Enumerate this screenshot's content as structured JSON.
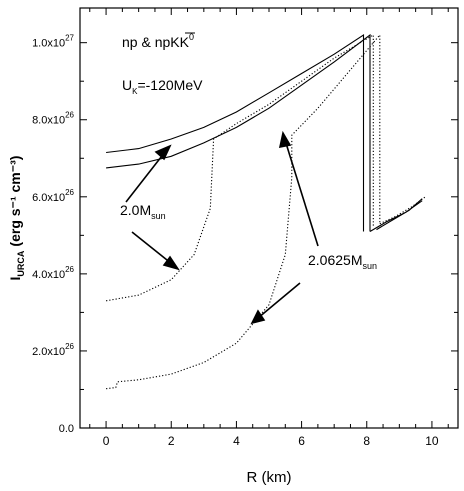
{
  "chart_data": {
    "type": "line",
    "xlabel": "R (km)",
    "ylabel_main": "I",
    "ylabel_sub": "URCA",
    "ylabel_units": "(erg s⁻¹ cm⁻³)",
    "xlim": [
      -0.8,
      10.8
    ],
    "ylim": [
      0,
      1.09e+27
    ],
    "xticks": [
      {
        "v": 0,
        "label": "0"
      },
      {
        "v": 2,
        "label": "2"
      },
      {
        "v": 4,
        "label": "4"
      },
      {
        "v": 6,
        "label": "6"
      },
      {
        "v": 8,
        "label": "8"
      },
      {
        "v": 10,
        "label": "10"
      }
    ],
    "yticks": [
      {
        "v": 0,
        "base": "0.0",
        "exp": ""
      },
      {
        "v": 2e+26,
        "base": "2.0x10",
        "exp": "26"
      },
      {
        "v": 4e+26,
        "base": "4.0x10",
        "exp": "26"
      },
      {
        "v": 6e+26,
        "base": "6.0x10",
        "exp": "26"
      },
      {
        "v": 8e+26,
        "base": "8.0x10",
        "exp": "26"
      },
      {
        "v": 1e+27,
        "base": "1.0x10",
        "exp": "27"
      }
    ],
    "legend_line1": "np & npK",
    "legend_kbar": "K",
    "legend_sup": "0",
    "legend_line2": "U",
    "legend_line2_sub": "K",
    "legend_line2_rest": "=-120MeV",
    "annotations": [
      {
        "main": "2.0M",
        "sub": "sun"
      },
      {
        "main": "2.0625M",
        "sub": "sun"
      }
    ],
    "series": [
      {
        "style": "solid",
        "points": [
          [
            0,
            7.15e+26
          ],
          [
            1,
            7.25e+26
          ],
          [
            2,
            7.5e+26
          ],
          [
            3,
            7.8e+26
          ],
          [
            4,
            8.2e+26
          ],
          [
            5,
            8.7e+26
          ],
          [
            6,
            9.2e+26
          ],
          [
            7,
            9.7e+26
          ],
          [
            7.9,
            1.02e+27
          ],
          [
            7.9,
            5.1e+26
          ]
        ]
      },
      {
        "style": "solid",
        "points": [
          [
            0,
            6.75e+26
          ],
          [
            1,
            6.85e+26
          ],
          [
            2,
            7.05e+26
          ],
          [
            3,
            7.4e+26
          ],
          [
            4,
            7.8e+26
          ],
          [
            5,
            8.3e+26
          ],
          [
            6,
            8.9e+26
          ],
          [
            7,
            9.5e+26
          ],
          [
            8.1,
            1.02e+27
          ],
          [
            8.1,
            5.1e+26
          ]
        ]
      },
      {
        "style": "solid",
        "points": [
          [
            8.1,
            5.1e+26
          ],
          [
            8.6,
            5.35e+26
          ],
          [
            9.2,
            5.6e+26
          ],
          [
            9.7,
            5.9e+26
          ]
        ]
      },
      {
        "style": "solid",
        "points": [
          [
            8.3,
            5.15e+26
          ],
          [
            8.8,
            5.4e+26
          ],
          [
            9.3,
            5.65e+26
          ],
          [
            9.7,
            5.95e+26
          ]
        ]
      },
      {
        "style": "dotted",
        "points": [
          [
            0,
            3.3e+26
          ],
          [
            1,
            3.45e+26
          ],
          [
            2,
            3.85e+26
          ],
          [
            2.7,
            4.5e+26
          ],
          [
            3.2,
            5.7e+26
          ],
          [
            3.3,
            7.5e+26
          ],
          [
            4,
            7.9e+26
          ],
          [
            5,
            8.4e+26
          ],
          [
            6,
            9e+26
          ],
          [
            7,
            9.6e+26
          ],
          [
            8.2,
            1.02e+27
          ],
          [
            8.2,
            5.2e+26
          ]
        ]
      },
      {
        "style": "dotted",
        "points": [
          [
            0,
            1.02e+26
          ],
          [
            0.3,
            1.05e+26
          ],
          [
            0.35,
            1.2e+26
          ],
          [
            1,
            1.25e+26
          ],
          [
            2,
            1.4e+26
          ],
          [
            3,
            1.7e+26
          ],
          [
            4,
            2.2e+26
          ],
          [
            5,
            3.2e+26
          ],
          [
            5.5,
            4.5e+26
          ],
          [
            5.7,
            6.5e+26
          ],
          [
            5.7,
            7.6e+26
          ],
          [
            6.5,
            8.3e+26
          ],
          [
            7.5,
            9.3e+26
          ],
          [
            8.4,
            1.02e+27
          ],
          [
            8.4,
            5.3e+26
          ]
        ]
      },
      {
        "style": "dotted",
        "points": [
          [
            8.4,
            5.3e+26
          ],
          [
            8.9,
            5.5e+26
          ],
          [
            9.4,
            5.75e+26
          ],
          [
            9.8,
            6e+26
          ]
        ]
      }
    ]
  }
}
